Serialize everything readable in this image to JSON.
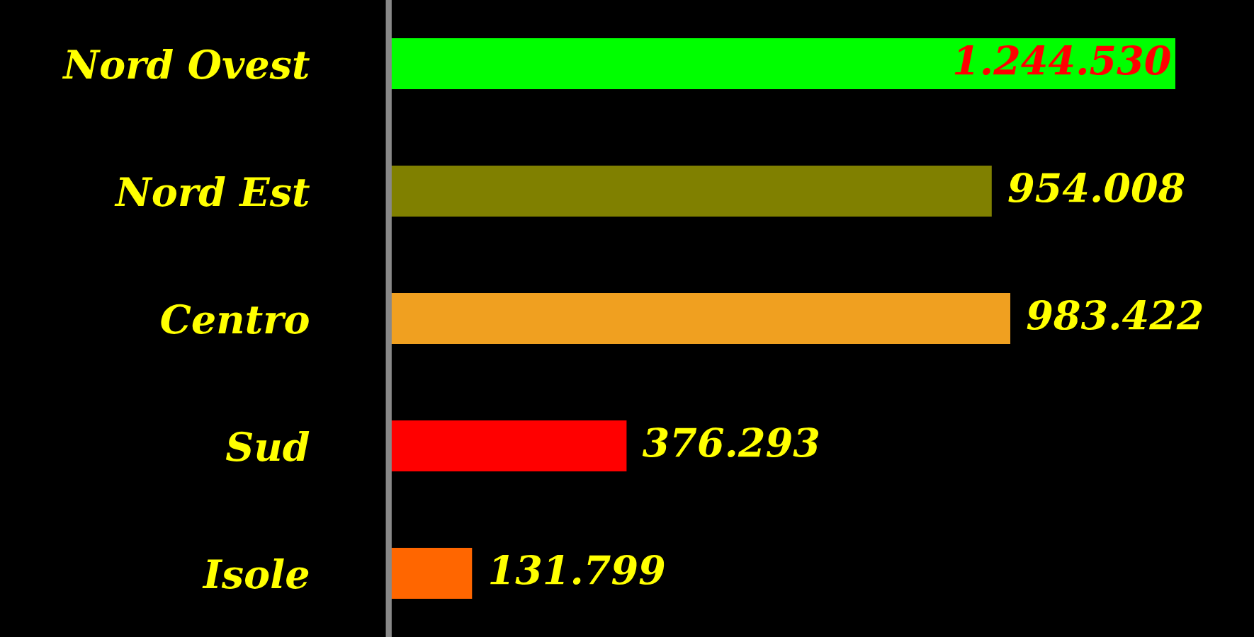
{
  "chart_data": {
    "type": "bar",
    "orientation": "horizontal",
    "categories": [
      "Nord Ovest",
      "Nord Est",
      "Centro",
      "Sud",
      "Isole"
    ],
    "values": [
      1244530,
      954008,
      983422,
      376293,
      131799
    ],
    "value_labels": [
      "1.244.530",
      "954.008",
      "983.422",
      "376.293",
      "131.799"
    ],
    "colors": [
      "#00ff00",
      "#808000",
      "#f0a020",
      "#ff0000",
      "#ff6600"
    ],
    "grid": false,
    "legend": false
  }
}
